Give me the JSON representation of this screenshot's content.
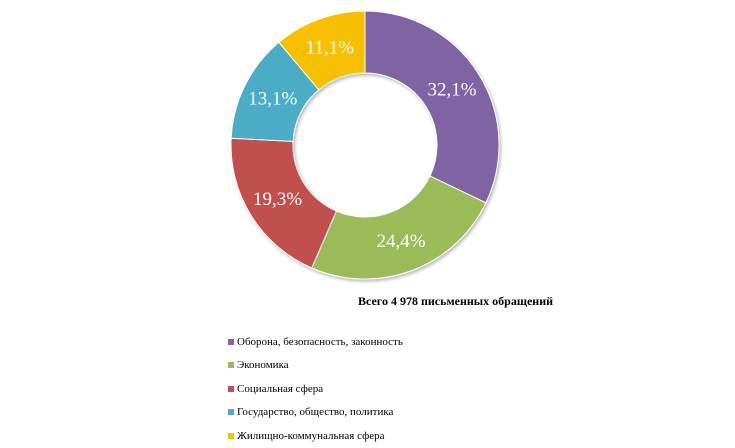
{
  "chart_data": {
    "type": "pie",
    "variant": "doughnut",
    "total_caption": "Всего 4 978 письменных обращений",
    "categories": [
      "Оборона, безопасность, законность",
      "Экономика",
      "Социальная сфера",
      "Государство, общество, политика",
      "Жилищно-коммунальная сфера"
    ],
    "values": [
      32.1,
      24.4,
      19.3,
      13.1,
      11.1
    ],
    "value_labels": [
      "32,1%",
      "24,4%",
      "19,3%",
      "13,1%",
      "11,1%"
    ],
    "colors": [
      "#8064a2",
      "#9bbb59",
      "#c0504d",
      "#4bacc6",
      "#f6c000"
    ],
    "legend_position": "bottom"
  }
}
